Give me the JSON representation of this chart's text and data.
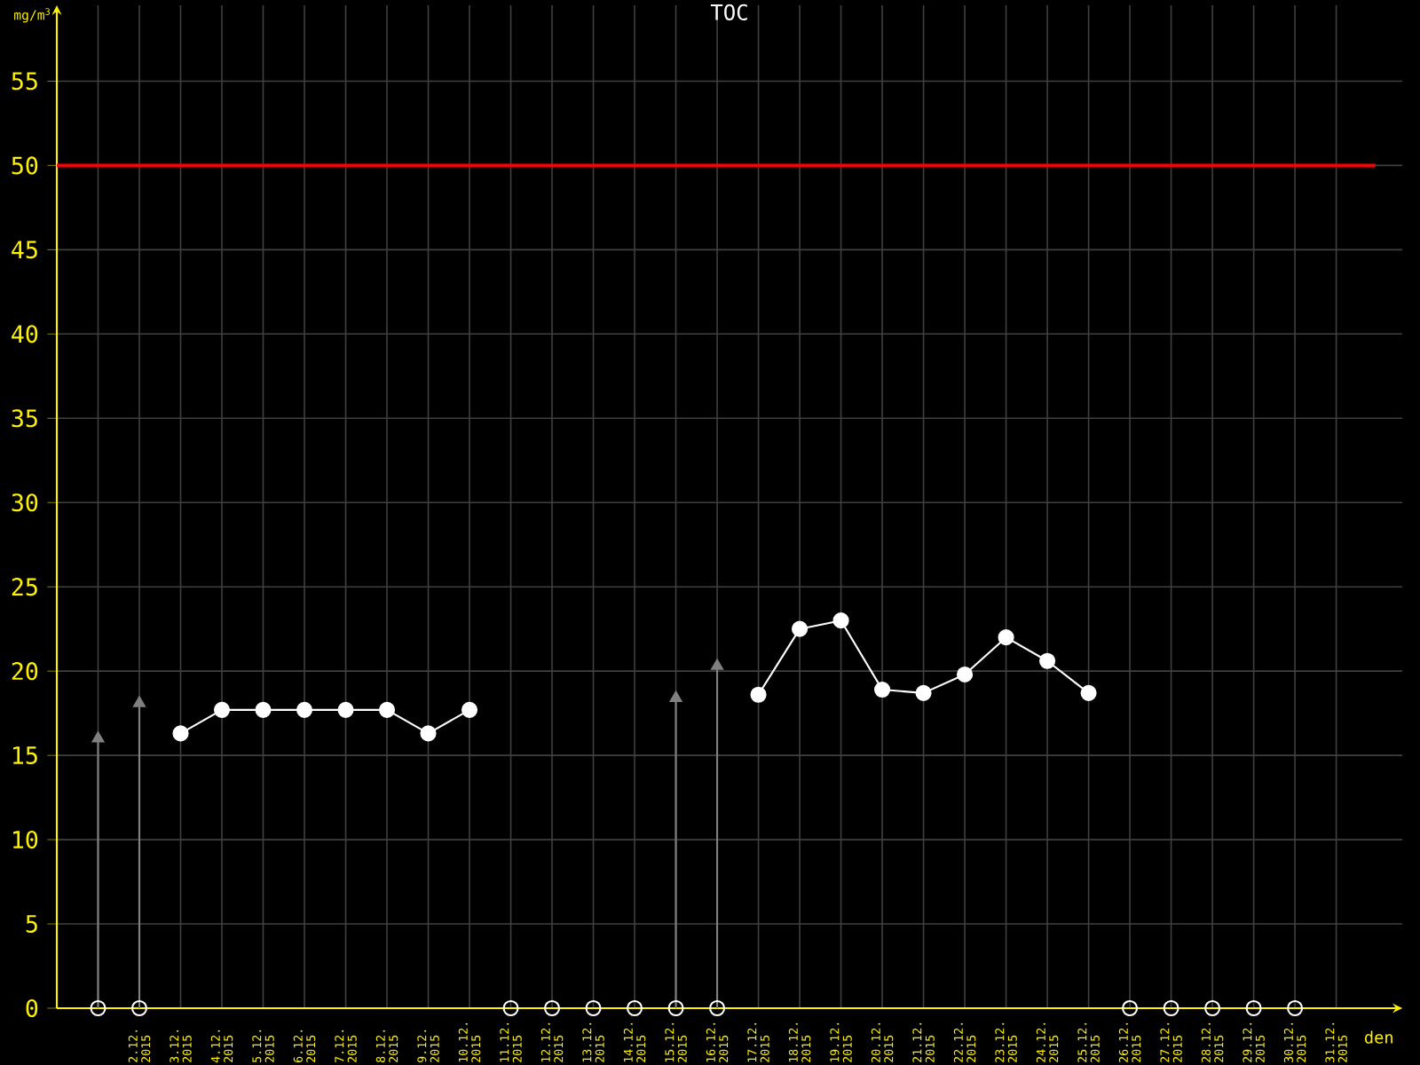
{
  "chart_data": {
    "type": "line",
    "title": "TOC",
    "xlabel": "den",
    "ylabel": "mg/m$^{3}$",
    "categories": [
      null,
      "2.12. 2015",
      "3.12. 2015",
      "4.12. 2015",
      "5.12. 2015",
      "6.12. 2015",
      "7.12. 2015",
      "8.12. 2015",
      "9.12. 2015",
      "10.12. 2015",
      "11.12. 2015",
      "12.12. 2015",
      "13.12. 2015",
      "14.12. 2015",
      "15.12. 2015",
      "16.12. 2015",
      "17.12. 2015",
      "18.12. 2015",
      "19.12. 2015",
      "20.12. 2015",
      "21.12. 2015",
      "22.12. 2015",
      "23.12. 2015",
      "24.12. 2015",
      "25.12. 2015",
      "26.12. 2015",
      "27.12. 2015",
      "28.12. 2015",
      "29.12. 2015",
      "30.12. 2015",
      "31.12. 2015"
    ],
    "series": [
      {
        "color": "#ffffff",
        "marker": "circle",
        "values": [
          null,
          null,
          16.3,
          17.7,
          17.7,
          17.7,
          17.7,
          17.7,
          16.3,
          17.7,
          null,
          null,
          null,
          null,
          null,
          null,
          18.6,
          22.5,
          23.0,
          18.9,
          18.7,
          19.8,
          22.0,
          20.6,
          18.7,
          null,
          null,
          null,
          null,
          null,
          null
        ]
      },
      {
        "type": "lollipop",
        "color": "#808080",
        "marker": "triangle",
        "values": [
          16.0,
          18.1,
          null,
          null,
          null,
          null,
          null,
          null,
          null,
          null,
          null,
          null,
          null,
          null,
          18.4,
          20.3,
          null,
          null,
          null,
          null,
          null,
          null,
          null,
          null,
          null,
          null,
          null,
          null,
          null,
          null,
          null
        ]
      },
      {
        "type": "scatter",
        "color": "#ffffff",
        "marker": "circle",
        "values": [
          0,
          0,
          null,
          null,
          null,
          null,
          null,
          null,
          null,
          null,
          0,
          0,
          0,
          0,
          0,
          0,
          null,
          null,
          null,
          null,
          null,
          null,
          null,
          null,
          null,
          0,
          0,
          0,
          0,
          0,
          null
        ]
      }
    ],
    "ylim": [
      0,
      59.5
    ],
    "yticks": [
      0,
      5,
      10,
      15,
      20,
      25,
      30,
      35,
      40,
      45,
      50,
      55
    ],
    "grid": true,
    "ref_lines": [
      {
        "axis": "y",
        "value": 50,
        "color": "#ff0000"
      }
    ]
  }
}
